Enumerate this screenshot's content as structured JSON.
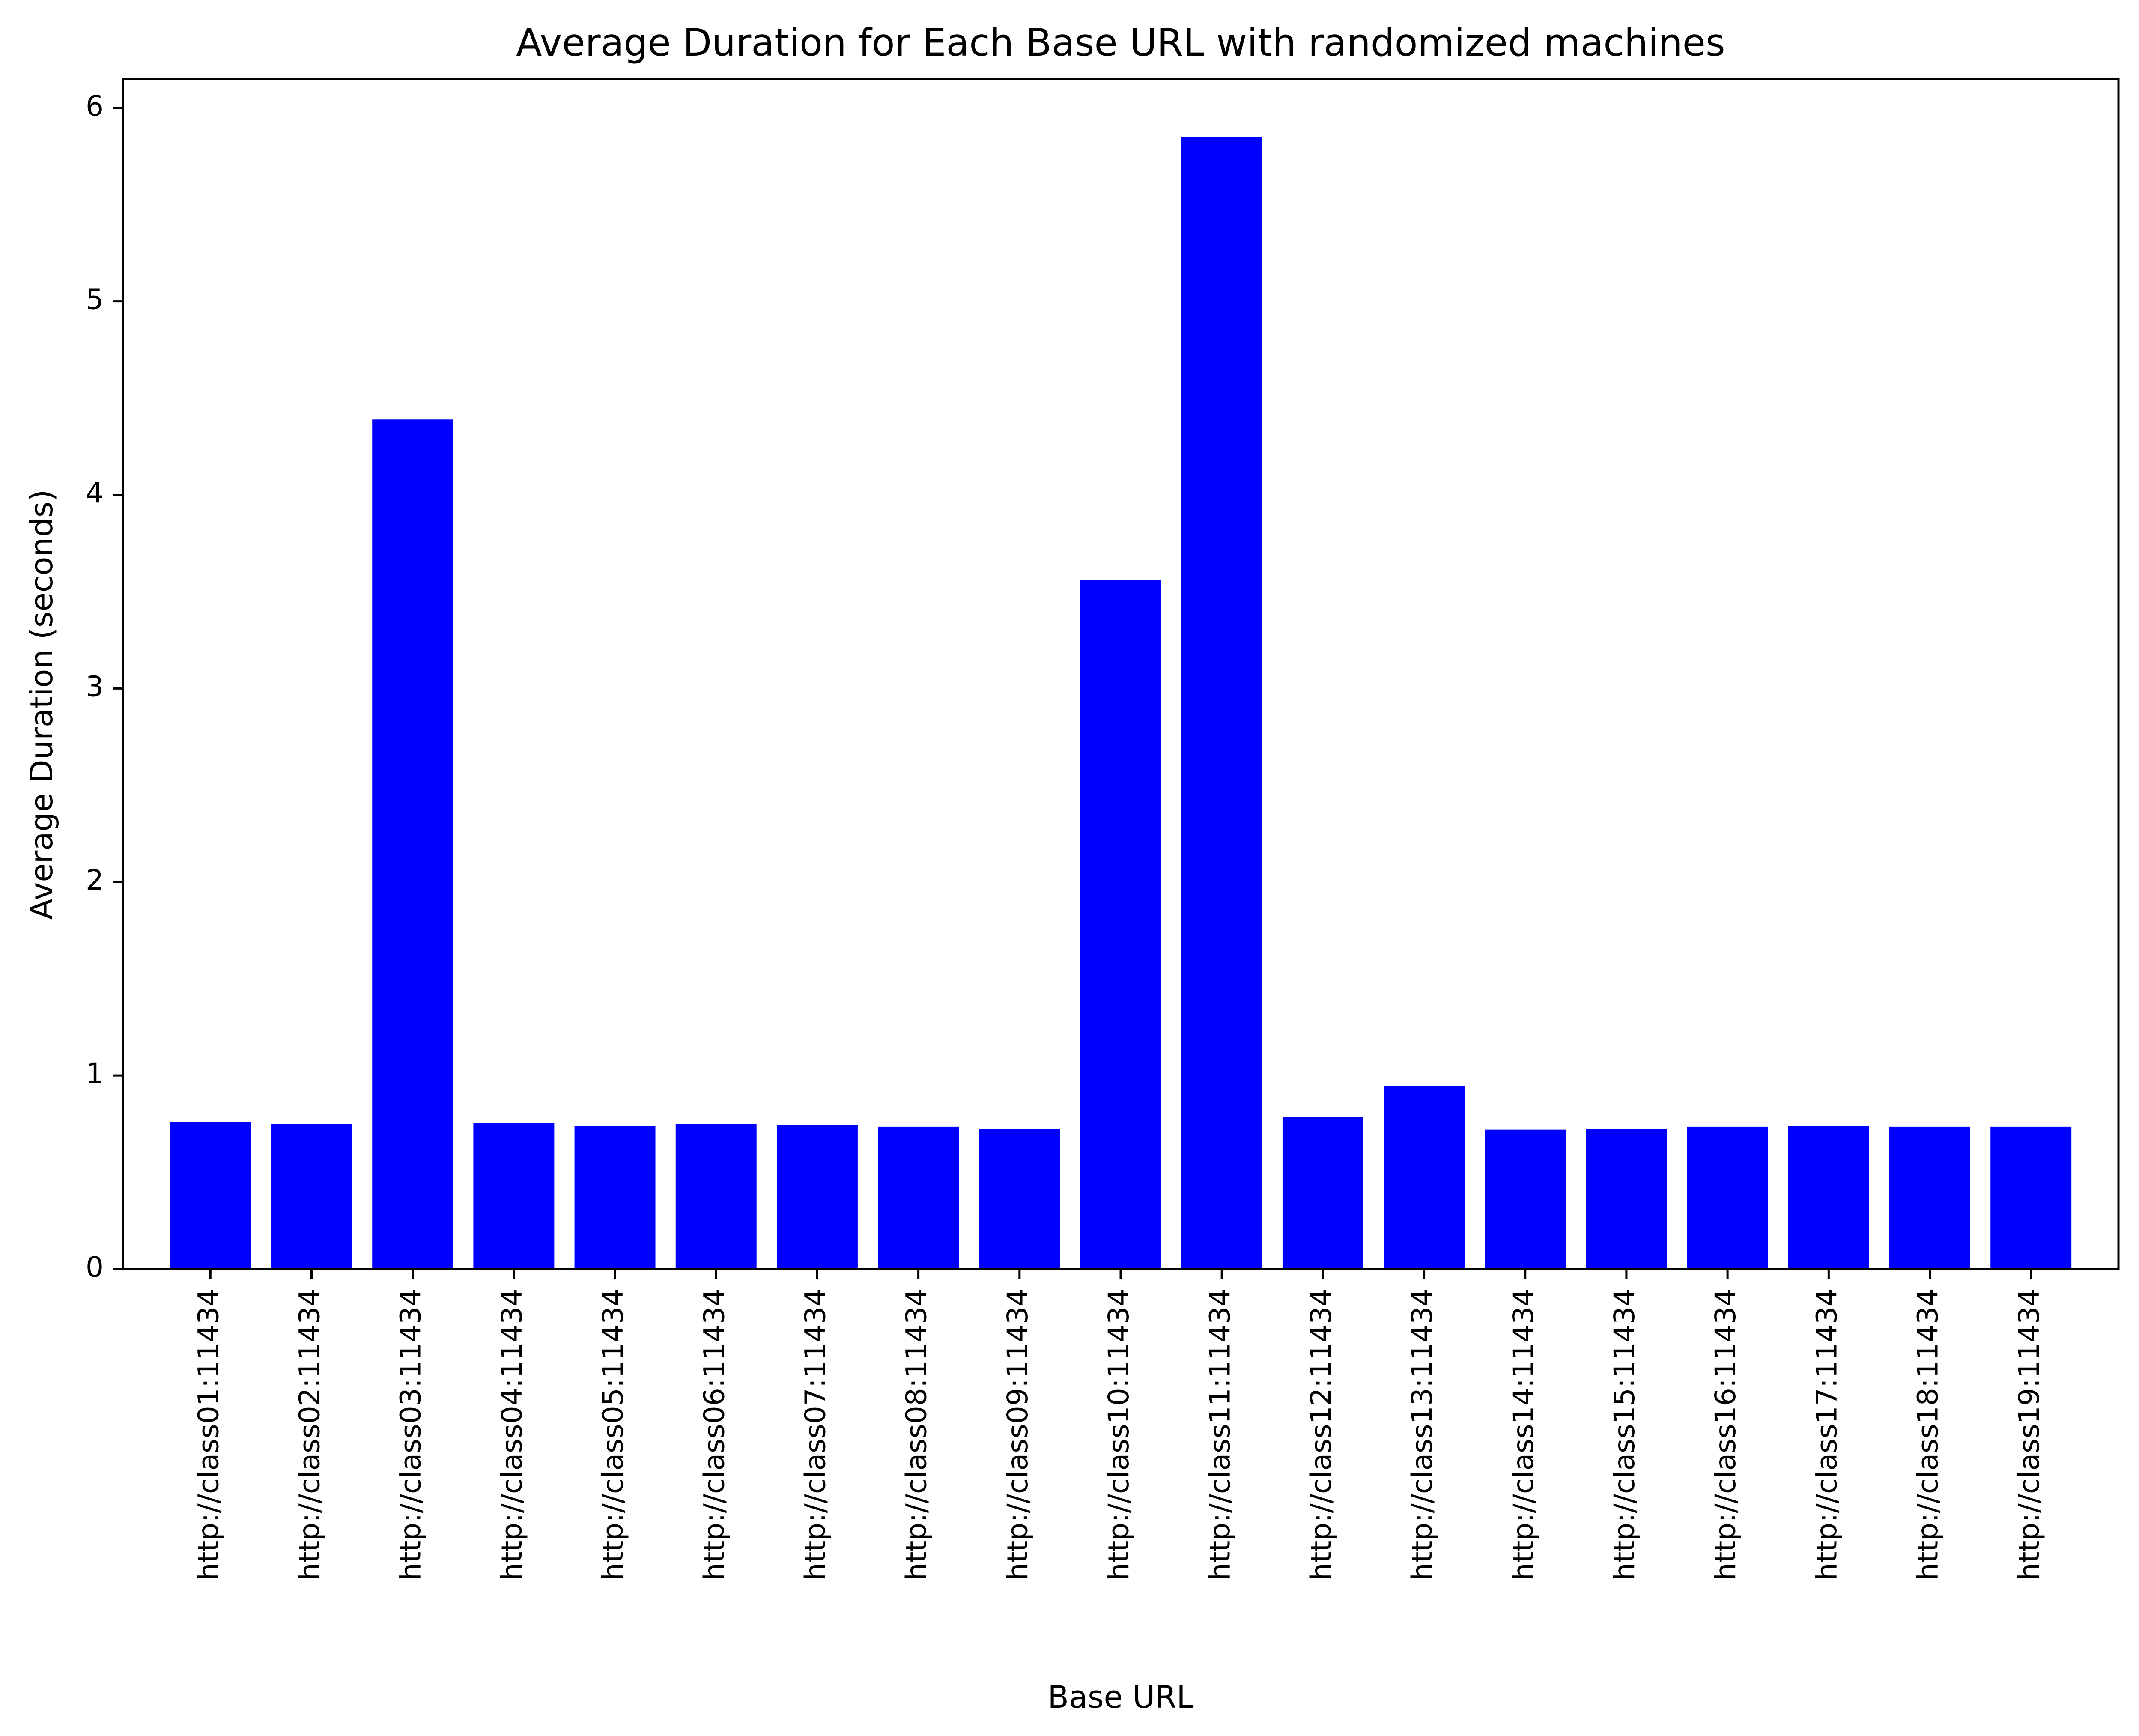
{
  "chart_data": {
    "type": "bar",
    "title": "Average Duration for Each Base URL with randomized machines",
    "xlabel": "Base URL",
    "ylabel": "Average Duration (seconds)",
    "ylim": [
      0,
      6.15
    ],
    "yticks": [
      0,
      1,
      2,
      3,
      4,
      5,
      6
    ],
    "bar_color": "#0000ff",
    "grid": false,
    "categories": [
      "http://class01:11434",
      "http://class02:11434",
      "http://class03:11434",
      "http://class04:11434",
      "http://class05:11434",
      "http://class06:11434",
      "http://class07:11434",
      "http://class08:11434",
      "http://class09:11434",
      "http://class10:11434",
      "http://class11:11434",
      "http://class12:11434",
      "http://class13:11434",
      "http://class14:11434",
      "http://class15:11434",
      "http://class16:11434",
      "http://class17:11434",
      "http://class18:11434",
      "http://class19:11434"
    ],
    "values": [
      0.76,
      0.75,
      4.39,
      0.755,
      0.74,
      0.75,
      0.745,
      0.735,
      0.725,
      3.56,
      5.85,
      0.785,
      0.945,
      0.72,
      0.725,
      0.735,
      0.74,
      0.735,
      0.735
    ]
  }
}
